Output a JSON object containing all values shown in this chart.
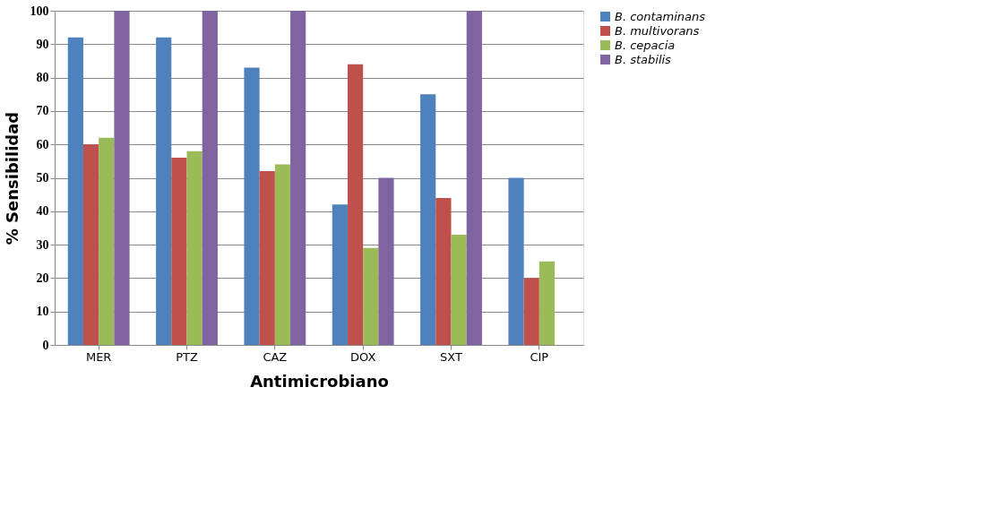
{
  "chart_data": {
    "type": "bar",
    "xlabel": "Antimicrobiano",
    "ylabel": "% Sensibilidad",
    "categories": [
      "MER",
      "PTZ",
      "CAZ",
      "DOX",
      "SXT",
      "CIP"
    ],
    "series": [
      {
        "name": "B. contaminans",
        "color": "#4f81bd",
        "values": [
          92,
          92,
          83,
          42,
          75,
          50
        ]
      },
      {
        "name": "B. multivorans",
        "color": "#c0504d",
        "values": [
          60,
          56,
          52,
          84,
          44,
          20
        ]
      },
      {
        "name": "B. cepacia",
        "color": "#9bbb59",
        "values": [
          62,
          58,
          54,
          29,
          33,
          25
        ]
      },
      {
        "name": "B. stabilis",
        "color": "#8064a2",
        "values": [
          100,
          100,
          100,
          50,
          100,
          null
        ]
      }
    ],
    "ylim": [
      0,
      100
    ],
    "yticks": [
      0,
      10,
      20,
      30,
      40,
      50,
      60,
      70,
      80,
      90,
      100
    ],
    "grid": "y",
    "legend": "right"
  }
}
